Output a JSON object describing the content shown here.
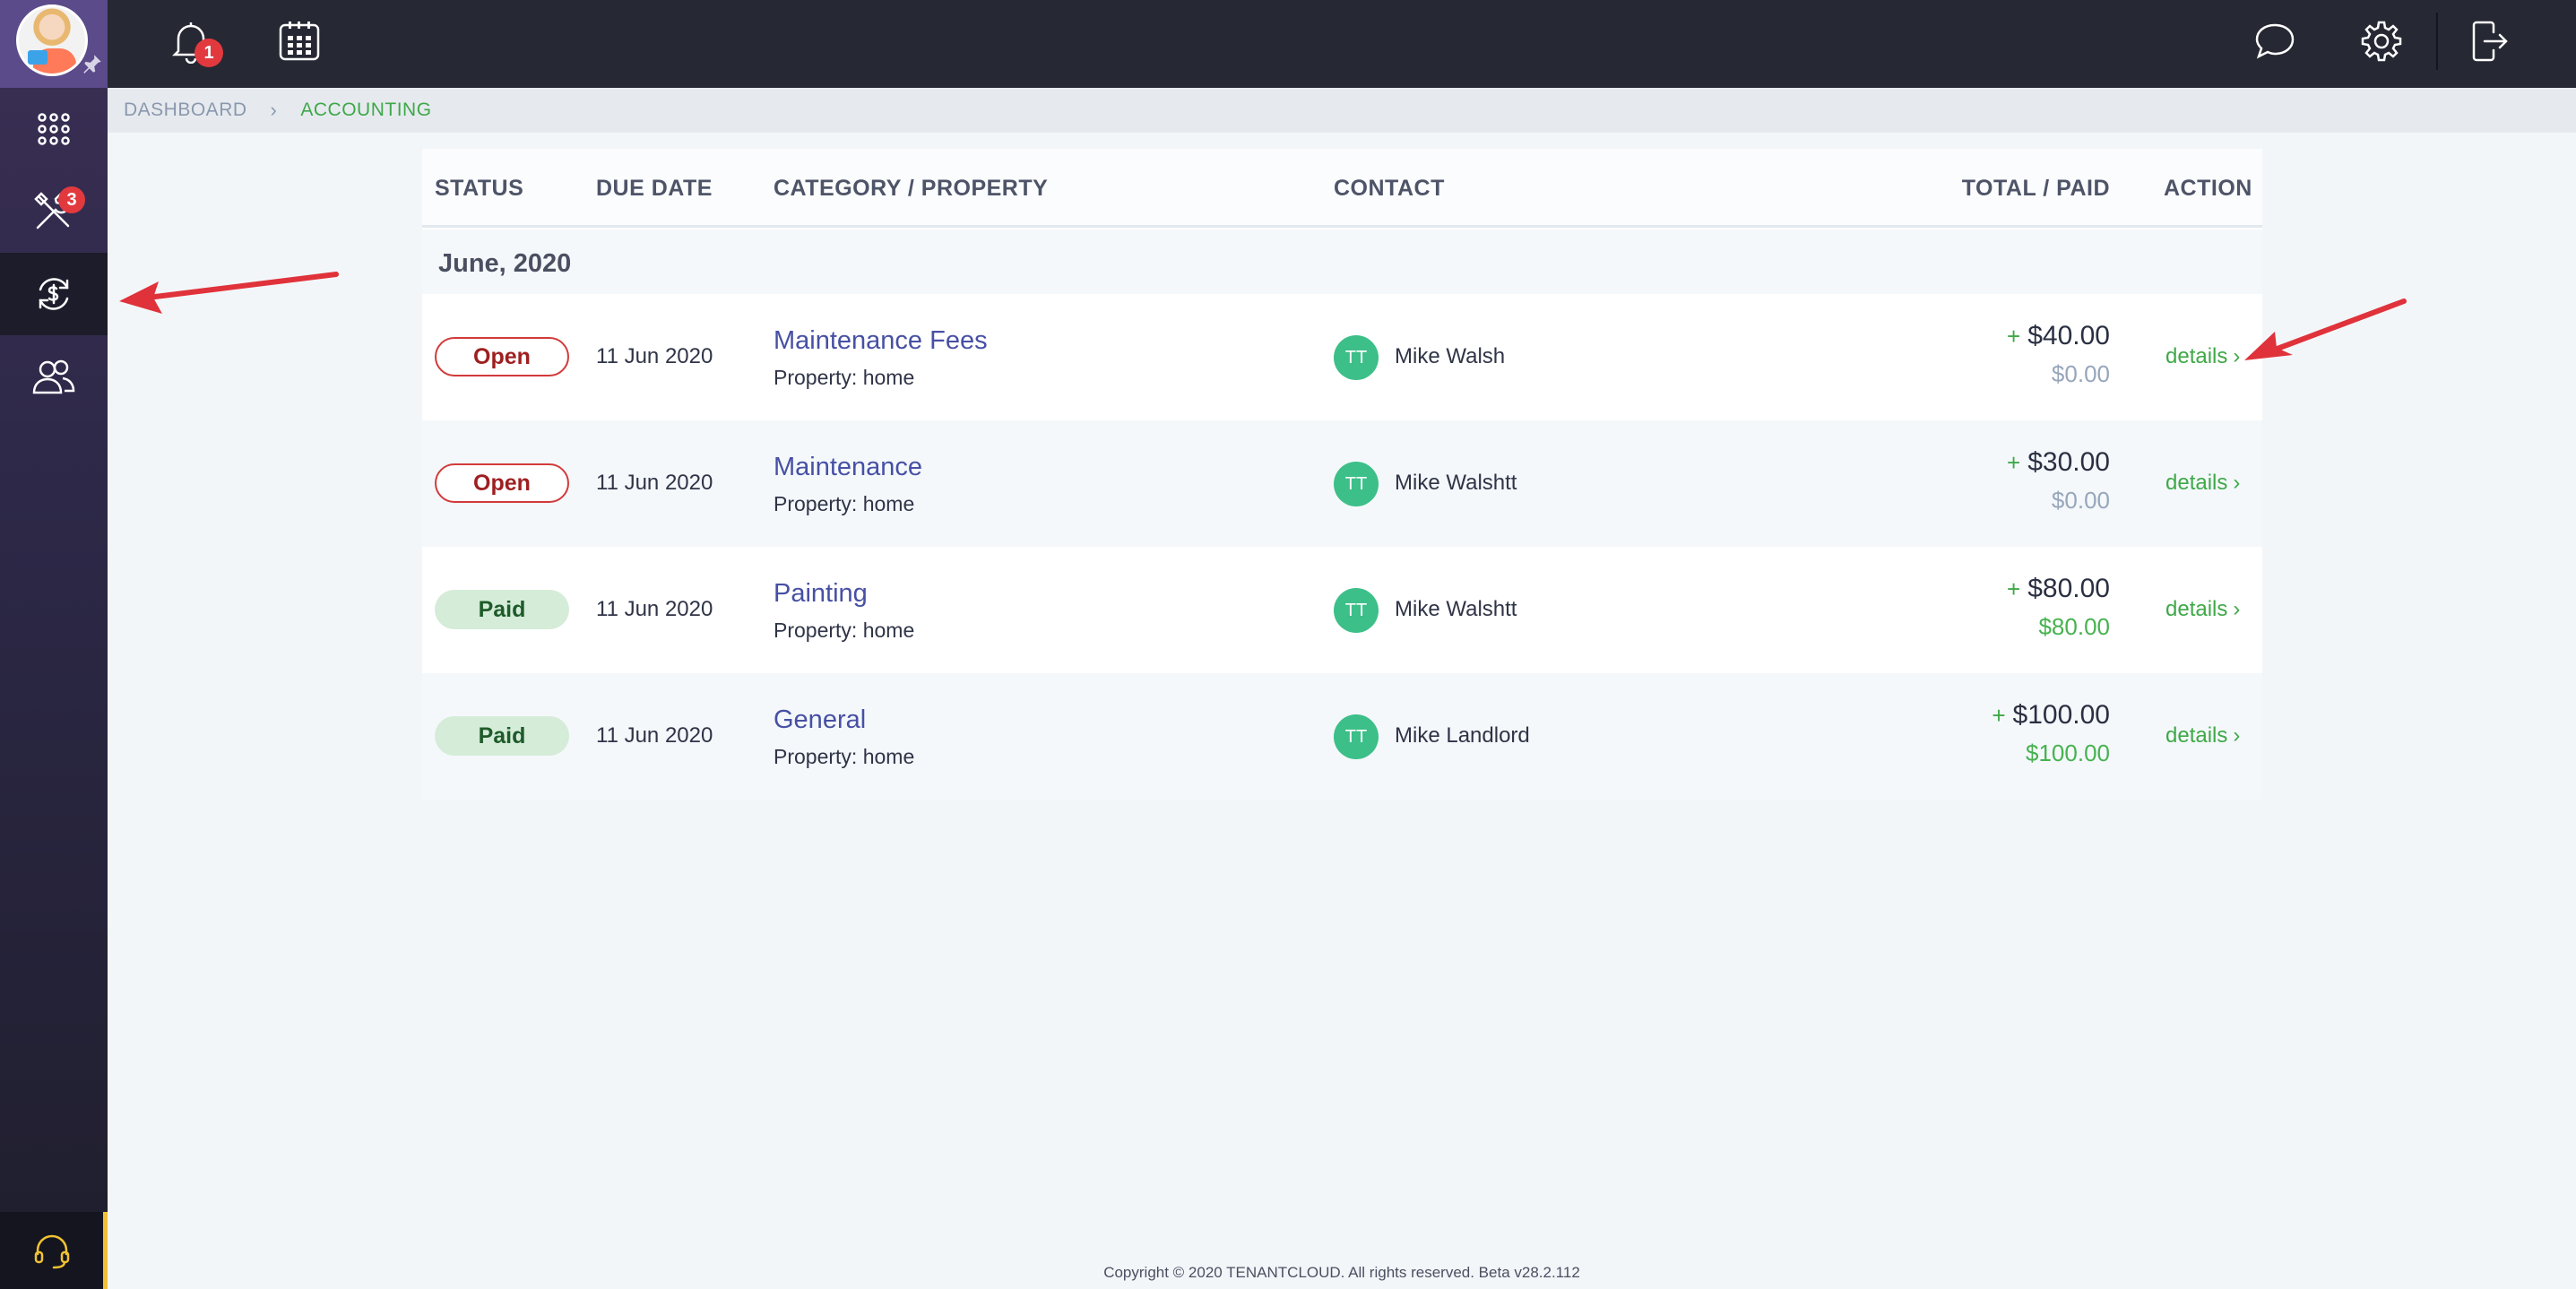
{
  "sidebar": {
    "items": [
      {
        "name": "apps",
        "icon": "grid-icon",
        "badge": ""
      },
      {
        "name": "maintenance",
        "icon": "tools-icon",
        "badge": "3"
      },
      {
        "name": "accounting",
        "icon": "dollar-cycle-icon",
        "badge": "",
        "active": true
      },
      {
        "name": "contacts",
        "icon": "users-icon",
        "badge": ""
      }
    ],
    "support_icon": "headset-icon"
  },
  "topbar": {
    "notifications_badge": "1",
    "icons": [
      "bell-icon",
      "calendar-icon",
      "chat-icon",
      "gear-icon",
      "logout-icon"
    ]
  },
  "breadcrumb": {
    "root": "DASHBOARD",
    "current": "ACCOUNTING"
  },
  "table": {
    "headers": {
      "status": "STATUS",
      "due_date": "DUE DATE",
      "category": "CATEGORY / PROPERTY",
      "contact": "CONTACT",
      "total": "TOTAL / PAID",
      "action": "ACTION"
    },
    "group_label": "June, 2020",
    "rows": [
      {
        "status": "Open",
        "due": "11 Jun 2020",
        "category": "Maintenance Fees",
        "property": "Property: home",
        "initials": "TT",
        "contact": "Mike Walsh",
        "plus": "+",
        "total": "$40.00",
        "paid": "$0.00",
        "action": "details"
      },
      {
        "status": "Open",
        "due": "11 Jun 2020",
        "category": "Maintenance",
        "property": "Property: home",
        "initials": "TT",
        "contact": "Mike Walshtt",
        "plus": "+",
        "total": "$30.00",
        "paid": "$0.00",
        "action": "details"
      },
      {
        "status": "Paid",
        "due": "11 Jun 2020",
        "category": "Painting",
        "property": "Property: home",
        "initials": "TT",
        "contact": "Mike Walshtt",
        "plus": "+",
        "total": "$80.00",
        "paid": "$80.00",
        "action": "details"
      },
      {
        "status": "Paid",
        "due": "11 Jun 2020",
        "category": "General",
        "property": "Property: home",
        "initials": "TT",
        "contact": "Mike Landlord",
        "plus": "+",
        "total": "$100.00",
        "paid": "$100.00",
        "action": "details"
      }
    ]
  },
  "footer": {
    "copyright": "Copyright © 2020 TENANTCLOUD. All rights reserved. Beta v28.2.112"
  },
  "colors": {
    "accent_green": "#3fa848",
    "open_red": "#d23a3a",
    "link_purple": "#4750a4",
    "annotation_arrow": "#e0323a"
  }
}
